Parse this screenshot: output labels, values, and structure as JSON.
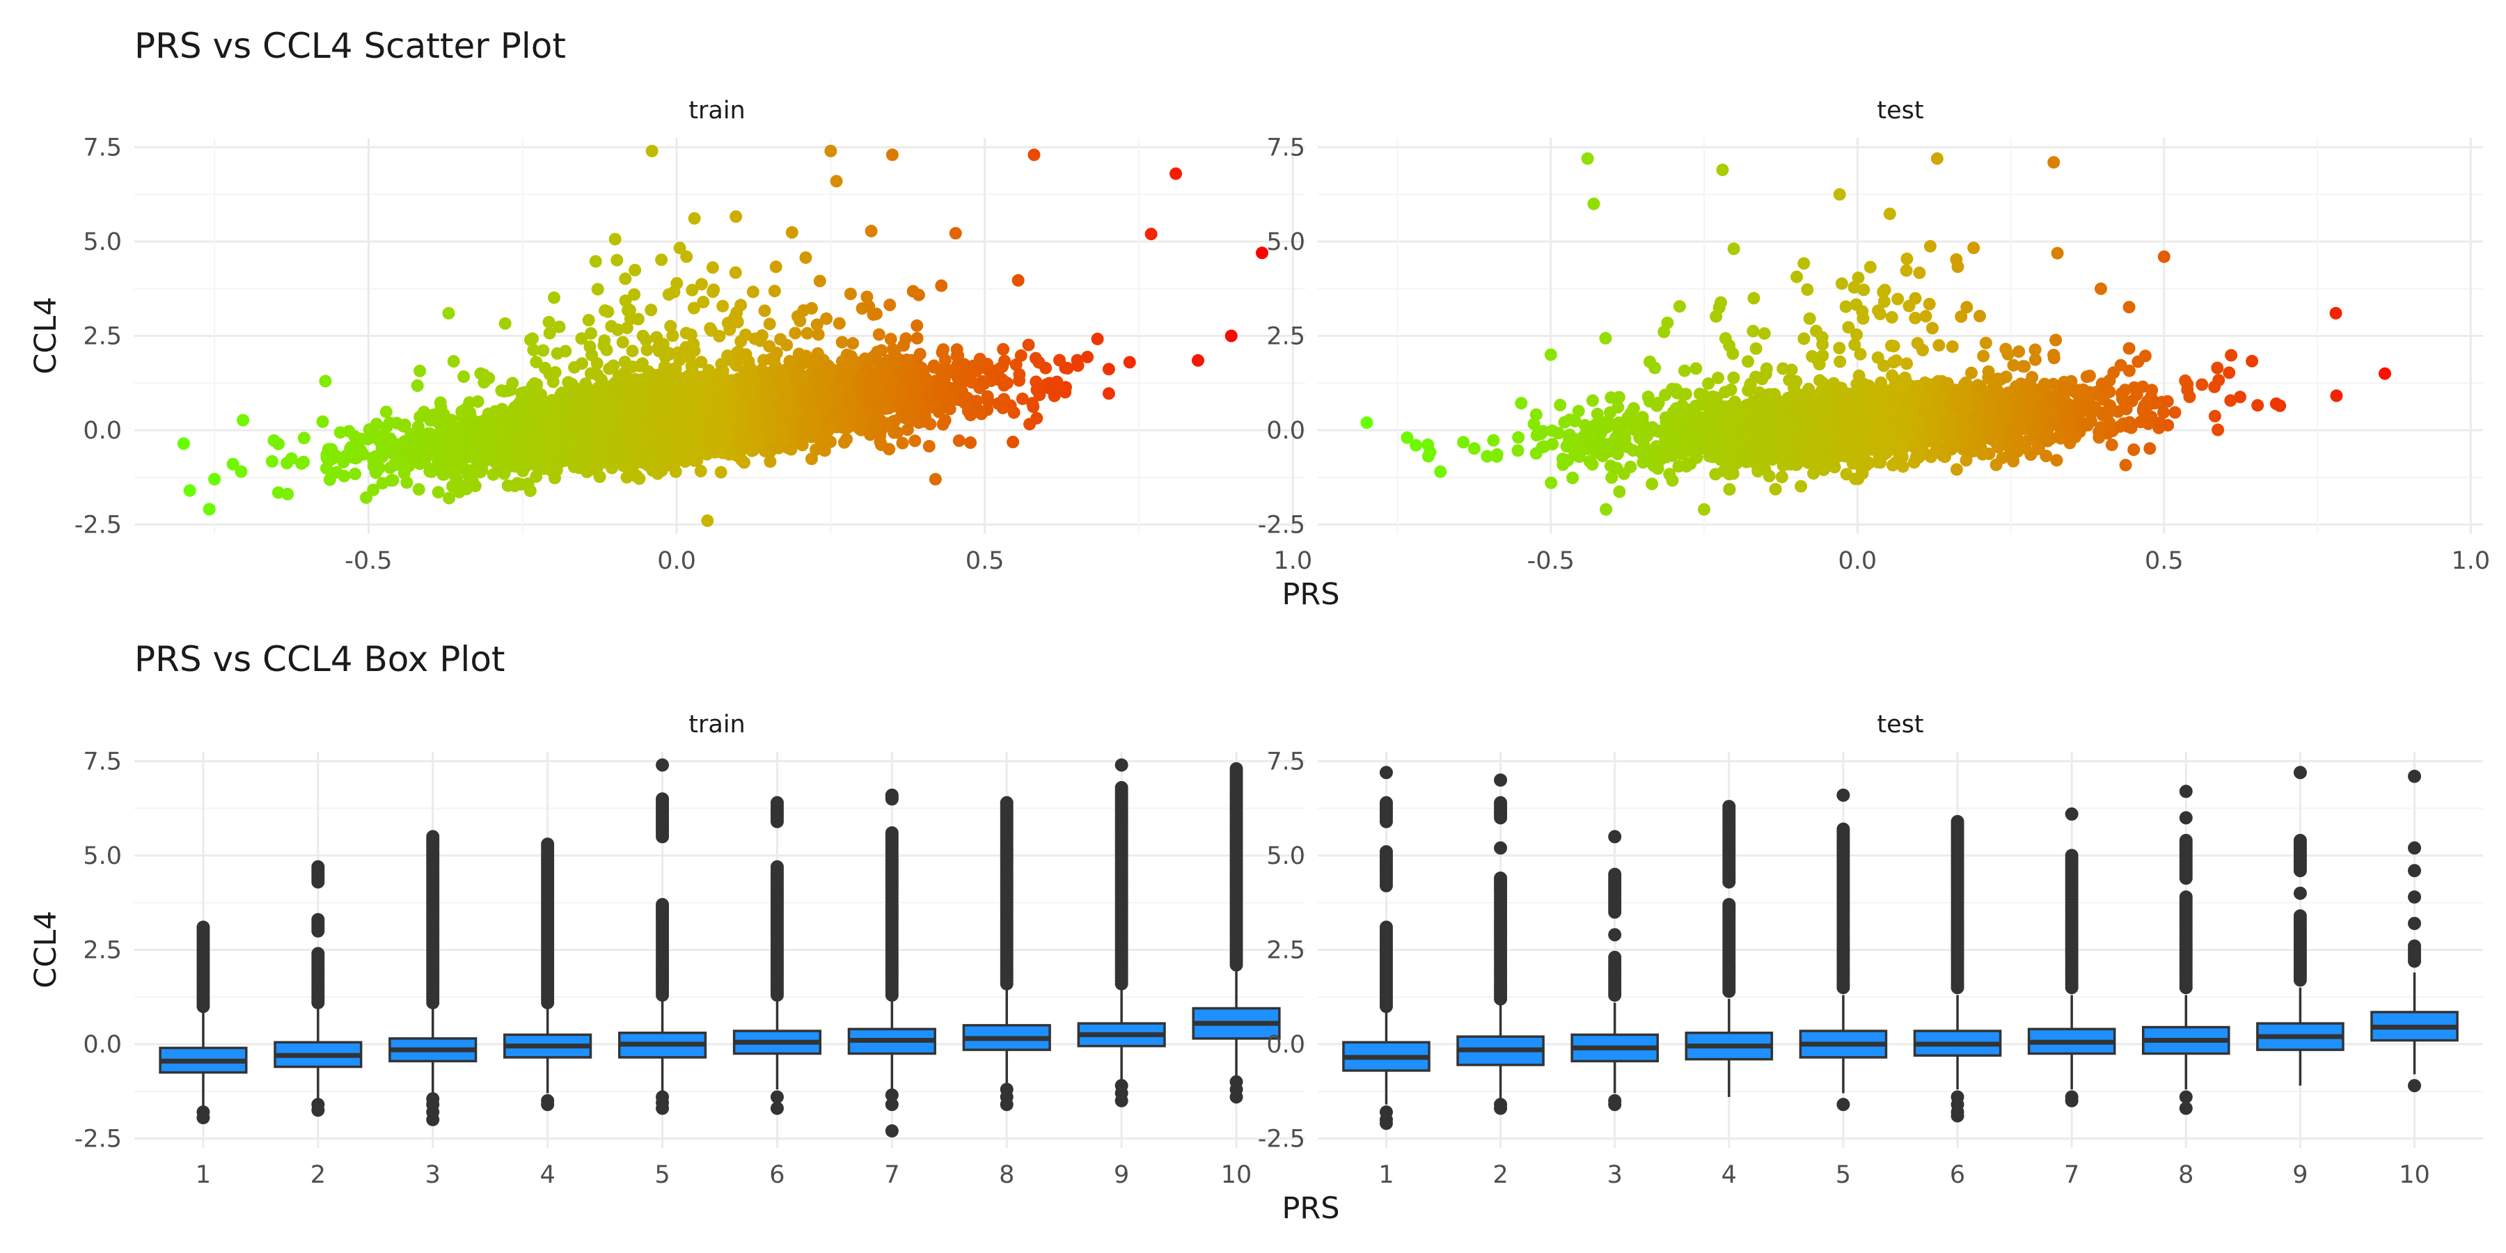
{
  "chart_data": [
    {
      "type": "scatter",
      "title": "PRS vs CCL4 Scatter Plot",
      "xlabel": "PRS",
      "ylabel": "CCL4",
      "xlim": [
        -0.88,
        1.02
      ],
      "ylim": [
        -2.75,
        7.75
      ],
      "x_ticks": [
        "-0.5",
        "0.0",
        "0.5",
        "1.0"
      ],
      "x_tick_values": [
        -0.5,
        0.0,
        0.5,
        1.0
      ],
      "y_ticks": [
        "-2.5",
        "0.0",
        "2.5",
        "5.0",
        "7.5"
      ],
      "y_tick_values": [
        -2.5,
        0.0,
        2.5,
        5.0,
        7.5
      ],
      "color_low": "#66ff00",
      "color_high": "#ff0000",
      "color_range": [
        -0.8,
        0.95
      ],
      "legend": "none",
      "grid": true,
      "panels": [
        {
          "name": "train",
          "trend_intercept": 0.3,
          "trend_slope": 1.7,
          "x_range": [
            -0.8,
            0.95
          ],
          "n_points": 4200,
          "highlighted_points": [
            {
              "x": -0.79,
              "y": -1.6
            },
            {
              "x": -0.75,
              "y": -1.3
            },
            {
              "x": -0.72,
              "y": -0.9
            },
            {
              "x": -0.57,
              "y": 1.3
            },
            {
              "x": -0.37,
              "y": 3.1
            },
            {
              "x": -0.04,
              "y": 7.4
            },
            {
              "x": 0.25,
              "y": 7.4
            },
            {
              "x": 0.35,
              "y": 7.3
            },
            {
              "x": 0.58,
              "y": 7.3
            },
            {
              "x": 0.81,
              "y": 6.8
            },
            {
              "x": 0.77,
              "y": 5.2
            },
            {
              "x": 0.95,
              "y": 4.7
            },
            {
              "x": 0.9,
              "y": 2.5
            },
            {
              "x": 0.05,
              "y": -2.4
            },
            {
              "x": 0.42,
              "y": -1.3
            }
          ]
        },
        {
          "name": "test",
          "trend_intercept": 0.15,
          "trend_slope": 1.1,
          "x_range": [
            -0.8,
            0.86
          ],
          "n_points": 2200,
          "highlighted_points": [
            {
              "x": -0.8,
              "y": 0.2
            },
            {
              "x": -0.72,
              "y": -0.4
            },
            {
              "x": -0.68,
              "y": -1.1
            },
            {
              "x": -0.5,
              "y": 2.0
            },
            {
              "x": -0.44,
              "y": 7.2
            },
            {
              "x": -0.43,
              "y": 6.0
            },
            {
              "x": -0.22,
              "y": 6.9
            },
            {
              "x": 0.13,
              "y": 7.2
            },
            {
              "x": 0.32,
              "y": 7.1
            },
            {
              "x": 0.5,
              "y": 4.6
            },
            {
              "x": 0.78,
              "y": 3.1
            },
            {
              "x": 0.86,
              "y": 1.5
            },
            {
              "x": -0.41,
              "y": -2.1
            },
            {
              "x": -0.25,
              "y": -2.1
            }
          ]
        }
      ]
    },
    {
      "type": "box",
      "title": "PRS vs CCL4 Box Plot",
      "xlabel": "PRS",
      "ylabel": "CCL4",
      "categories": [
        "1",
        "2",
        "3",
        "4",
        "5",
        "6",
        "7",
        "8",
        "9",
        "10"
      ],
      "ylim": [
        -2.75,
        7.75
      ],
      "y_ticks": [
        "-2.5",
        "0.0",
        "2.5",
        "5.0",
        "7.5"
      ],
      "y_tick_values": [
        -2.5,
        0.0,
        2.5,
        5.0,
        7.5
      ],
      "box_color": "#1e90ff",
      "grid": true,
      "panels": [
        {
          "name": "train",
          "series": [
            {
              "q1": -0.75,
              "median": -0.45,
              "q3": -0.1,
              "whisker_low": -1.75,
              "whisker_high": 0.95,
              "outliers_low": [
                -1.8,
                -1.95
              ],
              "outliers_high": [
                1.0,
                1.3,
                1.6,
                1.9,
                2.2,
                2.5,
                2.8,
                3.1
              ]
            },
            {
              "q1": -0.6,
              "median": -0.3,
              "q3": 0.05,
              "whisker_low": -1.5,
              "whisker_high": 1.0,
              "outliers_low": [
                -1.6,
                -1.75
              ],
              "outliers_high": [
                1.1,
                1.6,
                2.0,
                2.4,
                3.0,
                3.3,
                4.3,
                4.5,
                4.7
              ]
            },
            {
              "q1": -0.45,
              "median": -0.15,
              "q3": 0.15,
              "whisker_low": -1.3,
              "whisker_high": 1.0,
              "outliers_low": [
                -1.45,
                -1.6,
                -1.8,
                -2.0
              ],
              "outliers_high": [
                1.1,
                1.5,
                2.0,
                2.5,
                3.0,
                3.5,
                4.0,
                4.5,
                5.0,
                5.3,
                5.5
              ]
            },
            {
              "q1": -0.35,
              "median": -0.05,
              "q3": 0.25,
              "whisker_low": -1.3,
              "whisker_high": 1.0,
              "outliers_low": [
                -1.5,
                -1.6
              ],
              "outliers_high": [
                1.1,
                1.5,
                2.0,
                2.5,
                3.0,
                3.5,
                4.0,
                4.5,
                5.0,
                5.3
              ]
            },
            {
              "q1": -0.35,
              "median": 0.0,
              "q3": 0.3,
              "whisker_low": -1.3,
              "whisker_high": 1.2,
              "outliers_low": [
                -1.4,
                -1.55,
                -1.7
              ],
              "outliers_high": [
                1.3,
                1.7,
                2.1,
                2.5,
                2.9,
                3.3,
                3.7,
                5.5,
                6.0,
                6.5,
                7.4
              ]
            },
            {
              "q1": -0.25,
              "median": 0.05,
              "q3": 0.35,
              "whisker_low": -1.2,
              "whisker_high": 1.2,
              "outliers_low": [
                -1.4,
                -1.7
              ],
              "outliers_high": [
                1.3,
                1.8,
                2.3,
                2.8,
                3.3,
                3.8,
                4.3,
                4.7,
                5.9,
                6.4
              ]
            },
            {
              "q1": -0.25,
              "median": 0.1,
              "q3": 0.4,
              "whisker_low": -1.2,
              "whisker_high": 1.2,
              "outliers_low": [
                -1.35,
                -1.6,
                -2.3
              ],
              "outliers_high": [
                1.3,
                1.7,
                2.1,
                2.5,
                2.9,
                3.3,
                3.7,
                4.1,
                4.5,
                4.9,
                5.3,
                5.6,
                6.5,
                6.6
              ]
            },
            {
              "q1": -0.15,
              "median": 0.15,
              "q3": 0.5,
              "whisker_low": -1.1,
              "whisker_high": 1.5,
              "outliers_low": [
                -1.2,
                -1.4,
                -1.6
              ],
              "outliers_high": [
                1.6,
                2.0,
                2.4,
                2.8,
                3.2,
                3.6,
                4.0,
                4.4,
                4.8,
                5.2,
                5.6,
                6.0,
                6.4
              ]
            },
            {
              "q1": -0.05,
              "median": 0.25,
              "q3": 0.55,
              "whisker_low": -1.0,
              "whisker_high": 1.5,
              "outliers_low": [
                -1.1,
                -1.3,
                -1.5
              ],
              "outliers_high": [
                1.6,
                2.0,
                2.5,
                3.0,
                3.5,
                4.0,
                4.5,
                5.0,
                5.5,
                6.0,
                6.5,
                6.8,
                7.4
              ]
            },
            {
              "q1": 0.15,
              "median": 0.55,
              "q3": 0.95,
              "whisker_low": -0.9,
              "whisker_high": 2.0,
              "outliers_low": [
                -1.0,
                -1.2,
                -1.4
              ],
              "outliers_high": [
                2.1,
                2.6,
                3.1,
                3.6,
                4.1,
                4.6,
                5.1,
                5.6,
                6.1,
                6.5,
                6.7,
                7.0,
                7.3
              ]
            }
          ]
        },
        {
          "name": "test",
          "series": [
            {
              "q1": -0.7,
              "median": -0.35,
              "q3": 0.05,
              "whisker_low": -1.6,
              "whisker_high": 0.9,
              "outliers_low": [
                -1.8,
                -2.0,
                -2.1
              ],
              "outliers_high": [
                1.0,
                1.3,
                1.6,
                1.9,
                2.2,
                2.7,
                3.1,
                4.2,
                4.6,
                5.1,
                5.9,
                6.2,
                6.4,
                7.2
              ]
            },
            {
              "q1": -0.55,
              "median": -0.15,
              "q3": 0.2,
              "whisker_low": -1.5,
              "whisker_high": 1.1,
              "outliers_low": [
                -1.6,
                -1.7
              ],
              "outliers_high": [
                1.2,
                1.6,
                2.0,
                2.4,
                2.8,
                3.2,
                3.6,
                4.0,
                4.4,
                5.2,
                6.0,
                6.4,
                7.0
              ]
            },
            {
              "q1": -0.45,
              "median": -0.1,
              "q3": 0.25,
              "whisker_low": -1.3,
              "whisker_high": 1.1,
              "outliers_low": [
                -1.5,
                -1.6
              ],
              "outliers_high": [
                1.3,
                1.6,
                2.0,
                2.3,
                2.9,
                3.5,
                4.0,
                4.5,
                5.5
              ]
            },
            {
              "q1": -0.4,
              "median": -0.05,
              "q3": 0.3,
              "whisker_low": -1.4,
              "whisker_high": 1.2,
              "outliers_low": [],
              "outliers_high": [
                1.4,
                1.7,
                2.1,
                2.5,
                2.9,
                3.3,
                3.7,
                4.3,
                4.7,
                5.1,
                5.6,
                6.0,
                6.3
              ]
            },
            {
              "q1": -0.35,
              "median": 0.0,
              "q3": 0.35,
              "whisker_low": -1.3,
              "whisker_high": 1.3,
              "outliers_low": [
                -1.6
              ],
              "outliers_high": [
                1.5,
                1.9,
                2.3,
                2.7,
                3.1,
                3.5,
                4.0,
                4.5,
                5.0,
                5.4,
                5.7,
                6.6
              ]
            },
            {
              "q1": -0.3,
              "median": 0.0,
              "q3": 0.35,
              "whisker_low": -1.2,
              "whisker_high": 1.3,
              "outliers_low": [
                -1.4,
                -1.6,
                -1.8,
                -1.9
              ],
              "outliers_high": [
                1.5,
                1.9,
                2.3,
                2.7,
                3.2,
                3.6,
                4.0,
                4.5,
                5.0,
                5.5,
                5.9
              ]
            },
            {
              "q1": -0.25,
              "median": 0.05,
              "q3": 0.4,
              "whisker_low": -1.2,
              "whisker_high": 1.3,
              "outliers_low": [
                -1.4,
                -1.5
              ],
              "outliers_high": [
                1.5,
                1.9,
                2.3,
                2.7,
                3.2,
                3.6,
                4.0,
                4.5,
                5.0,
                6.1
              ]
            },
            {
              "q1": -0.25,
              "median": 0.1,
              "q3": 0.45,
              "whisker_low": -1.2,
              "whisker_high": 1.3,
              "outliers_low": [
                -1.4,
                -1.7
              ],
              "outliers_high": [
                1.5,
                1.9,
                2.3,
                2.7,
                3.1,
                3.5,
                3.9,
                4.4,
                4.9,
                5.4,
                6.0,
                6.7
              ]
            },
            {
              "q1": -0.15,
              "median": 0.2,
              "q3": 0.55,
              "whisker_low": -1.1,
              "whisker_high": 1.5,
              "outliers_low": [],
              "outliers_high": [
                1.7,
                2.0,
                2.5,
                3.0,
                3.4,
                4.0,
                4.6,
                5.0,
                5.4,
                7.2
              ]
            },
            {
              "q1": 0.1,
              "median": 0.45,
              "q3": 0.85,
              "whisker_low": -0.8,
              "whisker_high": 1.9,
              "outliers_low": [
                -1.1
              ],
              "outliers_high": [
                2.2,
                2.6,
                3.2,
                3.9,
                4.6,
                5.2,
                7.1
              ]
            }
          ]
        }
      ]
    }
  ]
}
